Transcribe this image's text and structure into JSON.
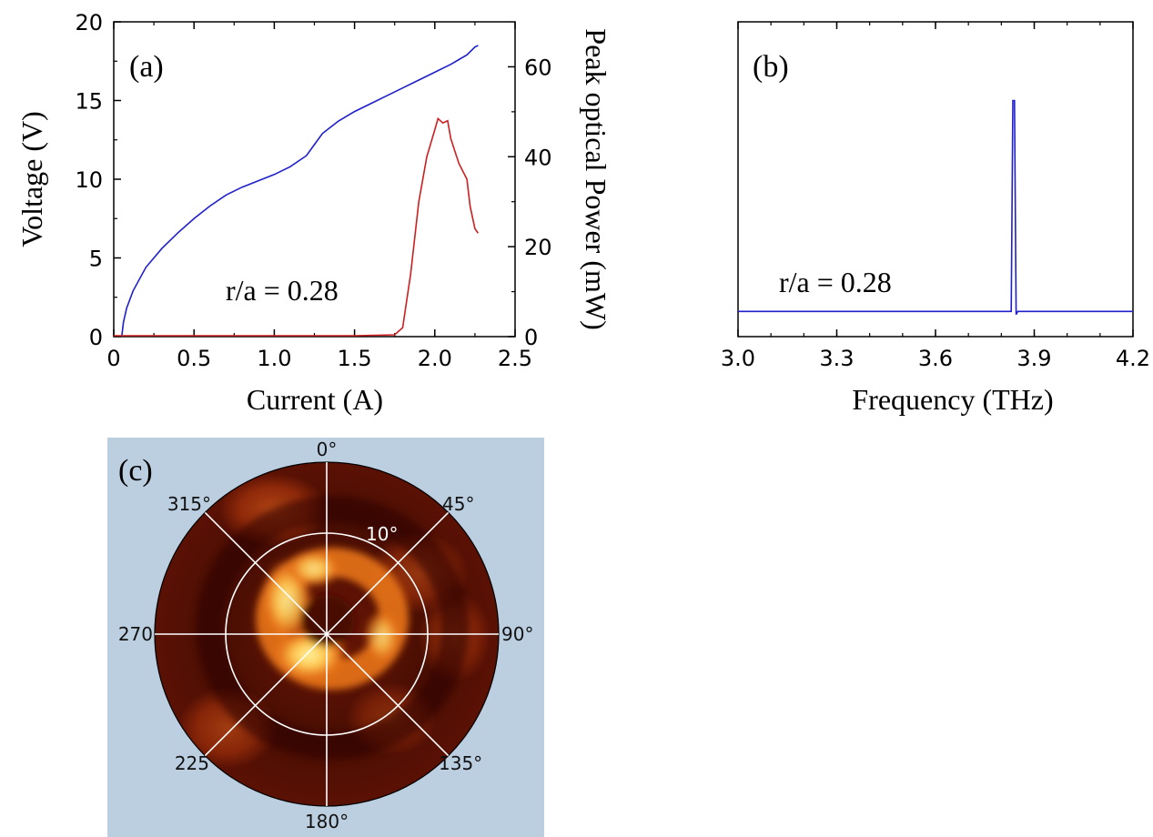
{
  "chart_data": [
    {
      "panel": "(a)",
      "type": "line",
      "annotation": "r/a = 0.28",
      "xlabel": "Current (A)",
      "ylabel": "Voltage (V)",
      "y2label": "Peak optical Power (mW)",
      "xlim": [
        0,
        2.5
      ],
      "ylim": [
        0,
        20
      ],
      "y2lim": [
        0,
        70
      ],
      "xticks": [
        0,
        0.5,
        1.0,
        1.5,
        2.0,
        2.5
      ],
      "xticklabels": [
        "0",
        "0.5",
        "1.0",
        "1.5",
        "2.0",
        "2.5"
      ],
      "yticks": [
        0,
        5,
        10,
        15,
        20
      ],
      "yticklabels": [
        "0",
        "5",
        "10",
        "15",
        "20"
      ],
      "y2ticks": [
        0,
        20,
        40,
        60
      ],
      "y2ticklabels": [
        "0",
        "20",
        "40",
        "60"
      ],
      "series": [
        {
          "axis": "left",
          "color": "#1f1fcc",
          "x": [
            0.05,
            0.06,
            0.08,
            0.12,
            0.2,
            0.3,
            0.4,
            0.5,
            0.6,
            0.7,
            0.8,
            0.9,
            1.0,
            1.1,
            1.2,
            1.25,
            1.3,
            1.35,
            1.4,
            1.5,
            1.6,
            1.7,
            1.8,
            1.9,
            2.0,
            2.1,
            2.15,
            2.2,
            2.25,
            2.27
          ],
          "y": [
            0.0,
            0.9,
            1.8,
            2.9,
            4.4,
            5.6,
            6.6,
            7.5,
            8.3,
            9.0,
            9.5,
            9.9,
            10.3,
            10.8,
            11.5,
            12.2,
            12.9,
            13.3,
            13.7,
            14.3,
            14.8,
            15.3,
            15.8,
            16.3,
            16.8,
            17.3,
            17.6,
            17.9,
            18.4,
            18.5
          ]
        },
        {
          "axis": "right",
          "color": "#cc1f1f",
          "x": [
            0.0,
            0.5,
            1.0,
            1.5,
            1.75,
            1.8,
            1.85,
            1.9,
            1.95,
            2.0,
            2.02,
            2.05,
            2.08,
            2.1,
            2.15,
            2.2,
            2.22,
            2.25,
            2.27
          ],
          "y": [
            0.2,
            0.2,
            0.2,
            0.2,
            0.4,
            2.0,
            14.0,
            30.0,
            40.0,
            46.0,
            48.5,
            47.5,
            48.0,
            44.0,
            38.5,
            35.0,
            29.0,
            24.0,
            23.0
          ]
        }
      ]
    },
    {
      "panel": "(b)",
      "type": "line",
      "annotation": "r/a = 0.28",
      "xlabel": "Frequency (THz)",
      "xlim": [
        3.0,
        4.2
      ],
      "ylim": [
        0,
        1
      ],
      "xticks": [
        3.0,
        3.3,
        3.6,
        3.9,
        4.2
      ],
      "xticklabels": [
        "3.0",
        "3.3",
        "3.6",
        "3.9",
        "4.2"
      ],
      "series": [
        {
          "color": "#1f1fcc",
          "x": [
            3.0,
            3.1,
            3.2,
            3.3,
            3.4,
            3.5,
            3.6,
            3.7,
            3.8,
            3.83,
            3.835,
            3.84,
            3.845,
            3.85,
            3.9,
            4.0,
            4.1,
            4.2
          ],
          "y": [
            0.08,
            0.08,
            0.08,
            0.08,
            0.08,
            0.08,
            0.08,
            0.08,
            0.08,
            0.08,
            0.75,
            0.75,
            0.07,
            0.08,
            0.08,
            0.08,
            0.08,
            0.08
          ]
        }
      ]
    },
    {
      "panel": "(c)",
      "type": "heatmap",
      "subtype": "polar far-field",
      "angle_labels": [
        "0°",
        "45°",
        "90°",
        "135°",
        "180°",
        "225",
        "270",
        "315°"
      ],
      "ring_label": "10°",
      "colors": {
        "background": "#bccfe1",
        "low": "#3a0a02",
        "high": "#ffd75a"
      }
    }
  ]
}
